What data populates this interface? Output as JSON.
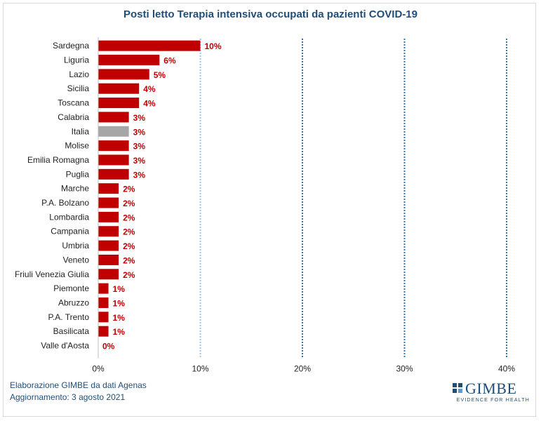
{
  "chart_data": {
    "type": "bar",
    "orientation": "horizontal",
    "title": "Posti letto Terapia  intensiva occupati da pazienti COVID-19",
    "categories": [
      "Sardegna",
      "Liguria",
      "Lazio",
      "Sicilia",
      "Toscana",
      "Calabria",
      "Italia",
      "Molise",
      "Emilia Romagna",
      "Puglia",
      "Marche",
      "P.A. Bolzano",
      "Lombardia",
      "Campania",
      "Umbria",
      "Veneto",
      "Friuli Venezia Giulia",
      "Piemonte",
      "Abruzzo",
      "P.A. Trento",
      "Basilicata",
      "Valle d'Aosta"
    ],
    "values": [
      10,
      6,
      5,
      4,
      4,
      3,
      3,
      3,
      3,
      3,
      2,
      2,
      2,
      2,
      2,
      2,
      2,
      1,
      1,
      1,
      1,
      0
    ],
    "value_labels": [
      "10%",
      "6%",
      "5%",
      "4%",
      "4%",
      "3%",
      "3%",
      "3%",
      "3%",
      "3%",
      "2%",
      "2%",
      "2%",
      "2%",
      "2%",
      "2%",
      "2%",
      "1%",
      "1%",
      "1%",
      "1%",
      "0%"
    ],
    "highlight_category": "Italia",
    "xlim": [
      0,
      40
    ],
    "xticks": [
      0,
      10,
      20,
      30,
      40
    ],
    "xtick_labels": [
      "0%",
      "10%",
      "20%",
      "30%",
      "40%"
    ],
    "gridlines": "dotted vertical at 10%, 20%, 30%",
    "colors": {
      "bar": "#c00000",
      "highlight": "#a6a6a6",
      "label": "#c00000",
      "grid": "#2e75b6"
    }
  },
  "footer": {
    "line1": "Elaborazione GIMBE da dati Agenas",
    "line2": "Aggiornamento: 3 agosto 2021"
  },
  "logo": {
    "name": "GIMBE",
    "tagline": "EVIDENCE FOR HEALTH"
  }
}
